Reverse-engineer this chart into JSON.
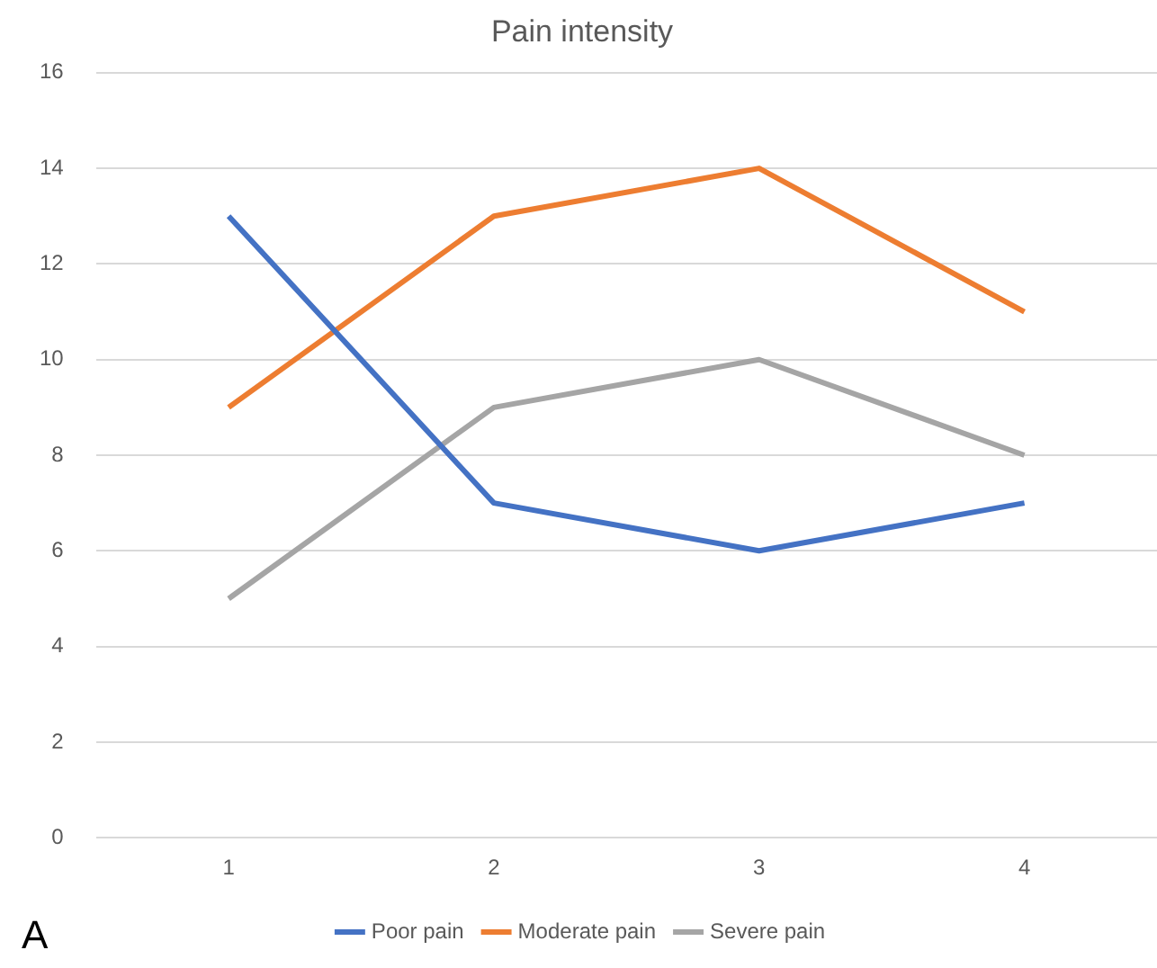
{
  "chart_data": {
    "type": "line",
    "title": "Pain intensity",
    "categories": [
      "1",
      "2",
      "3",
      "4"
    ],
    "series": [
      {
        "name": "Poor pain",
        "color": "#4472c4",
        "values": [
          13,
          7,
          6,
          7
        ]
      },
      {
        "name": "Moderate pain",
        "color": "#ed7d31",
        "values": [
          9,
          13,
          14,
          11
        ]
      },
      {
        "name": "Severe pain",
        "color": "#a5a5a5",
        "values": [
          5,
          9,
          10,
          8
        ]
      }
    ],
    "ylim": [
      0,
      16
    ],
    "yticks": [
      0,
      2,
      4,
      6,
      8,
      10,
      12,
      14,
      16
    ],
    "grid": "y",
    "legend": "bottom",
    "marker": "none",
    "line_style": "solid",
    "annotations": [
      "A"
    ]
  }
}
